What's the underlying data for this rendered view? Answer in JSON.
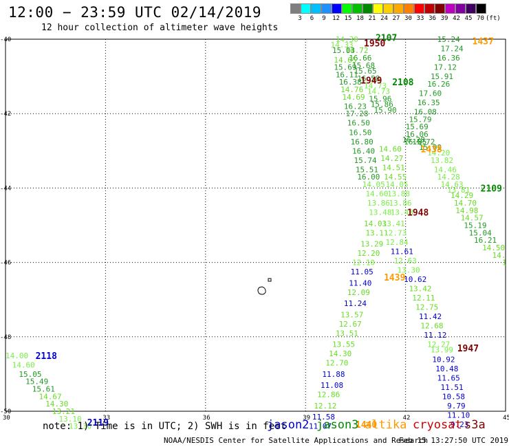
{
  "header": {
    "title": "12:00 − 23:59 UTC 02/14/2019",
    "subtitle": "12 hour collection of altimeter wave heights"
  },
  "color_scale": {
    "colors": [
      "#7f7f7f",
      "#00ffff",
      "#00c0ff",
      "#1e90ff",
      "#0000ff",
      "#00ff00",
      "#00c000",
      "#008800",
      "#ffff00",
      "#ffd000",
      "#ffaa00",
      "#ff7f00",
      "#ff0000",
      "#c00000",
      "#800000",
      "#c000c0",
      "#8000a0",
      "#400060",
      "#000000"
    ],
    "labels": [
      "3",
      "6",
      "9",
      "12",
      "15",
      "18",
      "21",
      "24",
      "27",
      "30",
      "33",
      "36",
      "39",
      "42",
      "45",
      "70",
      "(ft)"
    ]
  },
  "map": {
    "lat_labels": [
      "-40",
      "-42",
      "-44",
      "-46",
      "-48",
      "-50"
    ],
    "lon_labels": [
      "30",
      "33",
      "36",
      "39",
      "42",
      "45"
    ]
  },
  "observations": [
    {
      "text": "14.30",
      "lon": 39.9,
      "lat": -40.0,
      "color": "#77ee44"
    },
    {
      "text": "14.33",
      "lon": 39.75,
      "lat": -40.15,
      "color": "#77ee44"
    },
    {
      "text": "14.72",
      "lon": 40.2,
      "lat": -40.3,
      "color": "#66dd22"
    },
    {
      "text": "15.03",
      "lon": 39.8,
      "lat": -40.3,
      "color": "#229922"
    },
    {
      "text": "16.66",
      "lon": 40.3,
      "lat": -40.5,
      "color": "#229922"
    },
    {
      "text": "14.65",
      "lon": 39.85,
      "lat": -40.55,
      "color": "#66dd22"
    },
    {
      "text": "15.69",
      "lon": 39.85,
      "lat": -40.75,
      "color": "#229922"
    },
    {
      "text": "15.68",
      "lon": 40.4,
      "lat": -40.7,
      "color": "#229922"
    },
    {
      "text": "15.65",
      "lon": 40.45,
      "lat": -40.85,
      "color": "#229922"
    },
    {
      "text": "16.11",
      "lon": 39.9,
      "lat": -40.95,
      "color": "#229922"
    },
    {
      "text": "16.58",
      "lon": 40.55,
      "lat": -41.05,
      "color": "#229922"
    },
    {
      "text": "16.38",
      "lon": 40.0,
      "lat": -41.15,
      "color": "#229922"
    },
    {
      "text": "14.73",
      "lon": 40.75,
      "lat": -41.25,
      "color": "#77ee44"
    },
    {
      "text": "14.76",
      "lon": 40.05,
      "lat": -41.35,
      "color": "#66dd22"
    },
    {
      "text": "14.73",
      "lon": 40.85,
      "lat": -41.4,
      "color": "#77ee44"
    },
    {
      "text": "14.69",
      "lon": 40.1,
      "lat": -41.55,
      "color": "#66dd22"
    },
    {
      "text": "15.96",
      "lon": 40.9,
      "lat": -41.6,
      "color": "#229922"
    },
    {
      "text": "15.86",
      "lon": 40.95,
      "lat": -41.75,
      "color": "#229922"
    },
    {
      "text": "16.23",
      "lon": 40.15,
      "lat": -41.8,
      "color": "#229922"
    },
    {
      "text": "15.90",
      "lon": 41.05,
      "lat": -41.9,
      "color": "#229922"
    },
    {
      "text": "17.28",
      "lon": 40.2,
      "lat": -42.0,
      "color": "#229922"
    },
    {
      "text": "16.50",
      "lon": 40.25,
      "lat": -42.25,
      "color": "#229922"
    },
    {
      "text": "16.50",
      "lon": 40.3,
      "lat": -42.5,
      "color": "#229922"
    },
    {
      "text": "16.80",
      "lon": 40.35,
      "lat": -42.75,
      "color": "#229922"
    },
    {
      "text": "16.40",
      "lon": 40.4,
      "lat": -43.0,
      "color": "#229922"
    },
    {
      "text": "15.74",
      "lon": 40.45,
      "lat": -43.25,
      "color": "#229922"
    },
    {
      "text": "15.51",
      "lon": 40.5,
      "lat": -43.5,
      "color": "#229922"
    },
    {
      "text": "16.00",
      "lon": 40.55,
      "lat": -43.7,
      "color": "#229922"
    },
    {
      "text": "14.60",
      "lon": 41.2,
      "lat": -42.95,
      "color": "#66dd22"
    },
    {
      "text": "14.27",
      "lon": 41.25,
      "lat": -43.2,
      "color": "#66dd22"
    },
    {
      "text": "14.51",
      "lon": 41.3,
      "lat": -43.45,
      "color": "#66dd22"
    },
    {
      "text": "14.55",
      "lon": 41.35,
      "lat": -43.7,
      "color": "#66dd22"
    },
    {
      "text": "14.05",
      "lon": 40.7,
      "lat": -43.9,
      "color": "#77ee44"
    },
    {
      "text": "14.05",
      "lon": 41.4,
      "lat": -43.9,
      "color": "#77ee44"
    },
    {
      "text": "14.60",
      "lon": 40.8,
      "lat": -44.15,
      "color": "#77ee44"
    },
    {
      "text": "13.88",
      "lon": 41.45,
      "lat": -44.15,
      "color": "#77ee44"
    },
    {
      "text": "13.86",
      "lon": 40.85,
      "lat": -44.4,
      "color": "#77ee44"
    },
    {
      "text": "13.86",
      "lon": 41.5,
      "lat": -44.4,
      "color": "#77ee44"
    },
    {
      "text": "13.48",
      "lon": 40.9,
      "lat": -44.65,
      "color": "#77ee44"
    },
    {
      "text": "13.48",
      "lon": 41.55,
      "lat": -44.65,
      "color": "#77ee44"
    },
    {
      "text": "14.03",
      "lon": 40.75,
      "lat": -44.95,
      "color": "#66dd22"
    },
    {
      "text": "13.41",
      "lon": 41.3,
      "lat": -44.95,
      "color": "#77ee44"
    },
    {
      "text": "13.11",
      "lon": 40.8,
      "lat": -45.2,
      "color": "#66dd22"
    },
    {
      "text": "12.73",
      "lon": 41.35,
      "lat": -45.2,
      "color": "#77ee44"
    },
    {
      "text": "13.29",
      "lon": 40.65,
      "lat": -45.5,
      "color": "#66dd22"
    },
    {
      "text": "12.84",
      "lon": 41.4,
      "lat": -45.45,
      "color": "#77ee44"
    },
    {
      "text": "12.20",
      "lon": 40.55,
      "lat": -45.75,
      "color": "#66dd22"
    },
    {
      "text": "11.61",
      "lon": 41.55,
      "lat": -45.7,
      "color": "#0000cc"
    },
    {
      "text": "12.10",
      "lon": 40.4,
      "lat": -46.0,
      "color": "#77ee44"
    },
    {
      "text": "12.63",
      "lon": 41.65,
      "lat": -45.95,
      "color": "#77ee44"
    },
    {
      "text": "11.05",
      "lon": 40.35,
      "lat": -46.25,
      "color": "#0000cc"
    },
    {
      "text": "13.30",
      "lon": 41.75,
      "lat": -46.2,
      "color": "#77ee44"
    },
    {
      "text": "10.62",
      "lon": 41.95,
      "lat": -46.45,
      "color": "#0000cc"
    },
    {
      "text": "11.40",
      "lon": 40.3,
      "lat": -46.55,
      "color": "#0000cc"
    },
    {
      "text": "13.42",
      "lon": 42.1,
      "lat": -46.7,
      "color": "#66dd22"
    },
    {
      "text": "12.09",
      "lon": 40.25,
      "lat": -46.8,
      "color": "#66dd22"
    },
    {
      "text": "12.11",
      "lon": 42.2,
      "lat": -46.95,
      "color": "#66dd22"
    },
    {
      "text": "11.24",
      "lon": 40.15,
      "lat": -47.1,
      "color": "#0000cc"
    },
    {
      "text": "12.75",
      "lon": 42.3,
      "lat": -47.2,
      "color": "#66dd22"
    },
    {
      "text": "13.57",
      "lon": 40.05,
      "lat": -47.4,
      "color": "#66dd22"
    },
    {
      "text": "11.42",
      "lon": 42.4,
      "lat": -47.45,
      "color": "#0000cc"
    },
    {
      "text": "12.67",
      "lon": 40.0,
      "lat": -47.65,
      "color": "#66dd22"
    },
    {
      "text": "12.68",
      "lon": 42.45,
      "lat": -47.7,
      "color": "#66dd22"
    },
    {
      "text": "13.51",
      "lon": 39.9,
      "lat": -47.9,
      "color": "#66dd22"
    },
    {
      "text": "11.12",
      "lon": 42.55,
      "lat": -47.95,
      "color": "#0000cc"
    },
    {
      "text": "12.27",
      "lon": 42.65,
      "lat": -48.2,
      "color": "#77ee44"
    },
    {
      "text": "13.55",
      "lon": 39.8,
      "lat": -48.2,
      "color": "#66dd22"
    },
    {
      "text": "13.99",
      "lon": 42.75,
      "lat": -48.35,
      "color": "#77ee44"
    },
    {
      "text": "14.30",
      "lon": 39.7,
      "lat": -48.45,
      "color": "#66dd22"
    },
    {
      "text": "10.92",
      "lon": 42.8,
      "lat": -48.6,
      "color": "#0000cc"
    },
    {
      "text": "12.70",
      "lon": 39.6,
      "lat": -48.7,
      "color": "#66dd22"
    },
    {
      "text": "10.48",
      "lon": 42.9,
      "lat": -48.85,
      "color": "#0000cc"
    },
    {
      "text": "11.88",
      "lon": 39.5,
      "lat": -49.0,
      "color": "#0000cc"
    },
    {
      "text": "11.65",
      "lon": 42.95,
      "lat": -49.1,
      "color": "#0000cc"
    },
    {
      "text": "11.08",
      "lon": 39.45,
      "lat": -49.3,
      "color": "#0000cc"
    },
    {
      "text": "11.51",
      "lon": 43.05,
      "lat": -49.35,
      "color": "#0000cc"
    },
    {
      "text": "12.86",
      "lon": 39.35,
      "lat": -49.55,
      "color": "#66dd22"
    },
    {
      "text": "10.58",
      "lon": 43.1,
      "lat": -49.6,
      "color": "#0000cc"
    },
    {
      "text": "12.12",
      "lon": 39.25,
      "lat": -49.85,
      "color": "#66dd22"
    },
    {
      "text": "9.79",
      "lon": 43.25,
      "lat": -49.85,
      "color": "#0000cc"
    },
    {
      "text": "11.58",
      "lon": 39.2,
      "lat": -50.15,
      "color": "#0000cc"
    },
    {
      "text": "11.10",
      "lon": 43.25,
      "lat": -50.1,
      "color": "#0000cc"
    },
    {
      "text": "11.07",
      "lon": 39.1,
      "lat": -50.4,
      "color": "#0000cc"
    },
    {
      "text": "9.23",
      "lon": 43.35,
      "lat": -50.35,
      "color": "#0000cc"
    },
    {
      "text": "15.24",
      "lon": 42.95,
      "lat": -40.0,
      "color": "#229922"
    },
    {
      "text": "17.24",
      "lon": 43.05,
      "lat": -40.25,
      "color": "#229922"
    },
    {
      "text": "16.36",
      "lon": 42.95,
      "lat": -40.5,
      "color": "#229922"
    },
    {
      "text": "17.12",
      "lon": 42.85,
      "lat": -40.75,
      "color": "#229922"
    },
    {
      "text": "15.91",
      "lon": 42.75,
      "lat": -41.0,
      "color": "#229922"
    },
    {
      "text": "16.26",
      "lon": 42.65,
      "lat": -41.2,
      "color": "#229922"
    },
    {
      "text": "17.60",
      "lon": 42.4,
      "lat": -41.45,
      "color": "#229922"
    },
    {
      "text": "16.35",
      "lon": 42.35,
      "lat": -41.7,
      "color": "#229922"
    },
    {
      "text": "16.08",
      "lon": 42.25,
      "lat": -41.95,
      "color": "#229922"
    },
    {
      "text": "15.79",
      "lon": 42.1,
      "lat": -42.15,
      "color": "#229922"
    },
    {
      "text": "15.69",
      "lon": 42.0,
      "lat": -42.35,
      "color": "#229922"
    },
    {
      "text": "16.06",
      "lon": 42.0,
      "lat": -42.55,
      "color": "#229922"
    },
    {
      "text": "16.85",
      "lon": 41.95,
      "lat": -42.75,
      "color": "#229922"
    },
    {
      "text": "16.28",
      "lon": 41.9,
      "lat": -42.7,
      "color": "#229922"
    },
    {
      "text": "15.72",
      "lon": 42.2,
      "lat": -42.75,
      "color": "#229922"
    },
    {
      "text": "15.09",
      "lon": 42.4,
      "lat": -42.9,
      "color": "#229922"
    },
    {
      "text": "14.20",
      "lon": 42.65,
      "lat": -43.05,
      "color": "#77ee44"
    },
    {
      "text": "13.82",
      "lon": 42.75,
      "lat": -43.25,
      "color": "#77ee44"
    },
    {
      "text": "14.46",
      "lon": 42.85,
      "lat": -43.5,
      "color": "#77ee44"
    },
    {
      "text": "14.28",
      "lon": 42.95,
      "lat": -43.7,
      "color": "#77ee44"
    },
    {
      "text": "14.63",
      "lon": 43.05,
      "lat": -43.9,
      "color": "#77ee44"
    },
    {
      "text": "13.81",
      "lon": 43.25,
      "lat": -44.05,
      "color": "#77ee44"
    },
    {
      "text": "14.29",
      "lon": 43.35,
      "lat": -44.2,
      "color": "#66dd22"
    },
    {
      "text": "14.70",
      "lon": 43.45,
      "lat": -44.4,
      "color": "#66dd22"
    },
    {
      "text": "14.98",
      "lon": 43.5,
      "lat": -44.6,
      "color": "#66dd22"
    },
    {
      "text": "14.57",
      "lon": 43.65,
      "lat": -44.8,
      "color": "#66dd22"
    },
    {
      "text": "15.19",
      "lon": 43.75,
      "lat": -45.0,
      "color": "#229922"
    },
    {
      "text": "15.04",
      "lon": 43.9,
      "lat": -45.2,
      "color": "#229922"
    },
    {
      "text": "16.21",
      "lon": 44.05,
      "lat": -45.4,
      "color": "#229922"
    },
    {
      "text": "14.50",
      "lon": 44.3,
      "lat": -45.6,
      "color": "#66dd22"
    },
    {
      "text": "14.",
      "lon": 44.6,
      "lat": -45.8,
      "color": "#66dd22"
    },
    {
      "text": "1",
      "lon": 44.9,
      "lat": -46.0,
      "color": "#66dd22"
    },
    {
      "text": "14.00",
      "lon": 30.0,
      "lat": -48.5,
      "color": "#77ee44"
    },
    {
      "text": "14.60",
      "lon": 30.2,
      "lat": -48.75,
      "color": "#77ee44"
    },
    {
      "text": "15.05",
      "lon": 30.4,
      "lat": -49.0,
      "color": "#229922"
    },
    {
      "text": "15.49",
      "lon": 30.6,
      "lat": -49.2,
      "color": "#229922"
    },
    {
      "text": "15.61",
      "lon": 30.8,
      "lat": -49.4,
      "color": "#229922"
    },
    {
      "text": "14.67",
      "lon": 31.0,
      "lat": -49.6,
      "color": "#66dd22"
    },
    {
      "text": "14.30",
      "lon": 31.2,
      "lat": -49.8,
      "color": "#66dd22"
    },
    {
      "text": "13.21",
      "lon": 31.4,
      "lat": -50.0,
      "color": "#66dd22"
    },
    {
      "text": "13.10",
      "lon": 31.6,
      "lat": -50.2,
      "color": "#77ee44"
    },
    {
      "text": "13.30",
      "lon": 31.9,
      "lat": -50.4,
      "color": "#77ee44"
    }
  ],
  "track_times": [
    {
      "text": "2107",
      "lon": 41.1,
      "lat": -39.95,
      "color": "#008800"
    },
    {
      "text": "1950",
      "lon": 40.75,
      "lat": -40.1,
      "color": "#800000"
    },
    {
      "text": "1437",
      "lon": 44.0,
      "lat": -40.05,
      "color": "#ff9900"
    },
    {
      "text": "1949",
      "lon": 40.65,
      "lat": -41.1,
      "color": "#800000"
    },
    {
      "text": "2108",
      "lon": 41.6,
      "lat": -41.15,
      "color": "#008800"
    },
    {
      "text": "1438",
      "lon": 42.45,
      "lat": -42.95,
      "color": "#ff9900"
    },
    {
      "text": "2109",
      "lon": 44.25,
      "lat": -44.0,
      "color": "#008800"
    },
    {
      "text": "1948",
      "lon": 42.05,
      "lat": -44.65,
      "color": "#800000"
    },
    {
      "text": "1439",
      "lon": 41.35,
      "lat": -46.4,
      "color": "#ff9900"
    },
    {
      "text": "1947",
      "lon": 43.55,
      "lat": -48.3,
      "color": "#800000"
    },
    {
      "text": "2118",
      "lon": 30.9,
      "lat": -48.5,
      "color": "#0000cc"
    },
    {
      "text": "2119",
      "lon": 32.45,
      "lat": -50.3,
      "color": "#0000cc"
    },
    {
      "text": "1440",
      "lon": 40.5,
      "lat": -50.35,
      "color": "#ff9900"
    }
  ],
  "footer": {
    "note": "note: 1) Time is in UTC; 2) SWH is in feet",
    "credit": "NOAA/NESDIS Center for Satellite Applications and Research",
    "timestamp": "Feb 15 13:27:50 UTC 2019"
  },
  "legend": [
    {
      "text": "jason2",
      "color": "#0000cc"
    },
    {
      "text": "jason3",
      "color": "#008800"
    },
    {
      "text": "altika",
      "color": "#ff9900"
    },
    {
      "text": "cryosat",
      "color": "#cc0000"
    },
    {
      "text": "s3a",
      "color": "#800000"
    }
  ]
}
